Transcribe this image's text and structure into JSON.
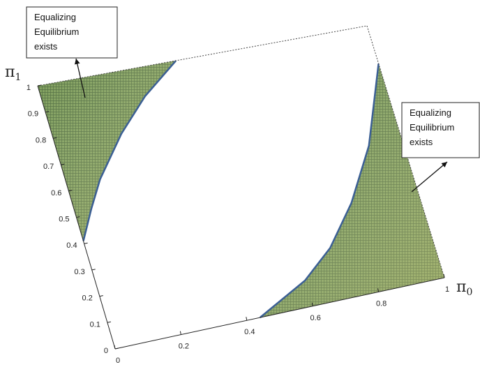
{
  "chart_data": {
    "type": "area",
    "title": "",
    "xlabel": "π0",
    "ylabel": "π1",
    "xlim": [
      0,
      1
    ],
    "ylim": [
      0,
      1
    ],
    "x_ticks": [
      0,
      0.2,
      0.4,
      0.6,
      0.8,
      1
    ],
    "y_ticks": [
      0,
      0.1,
      0.2,
      0.3,
      0.4,
      0.5,
      0.6,
      0.7,
      0.8,
      0.9,
      1
    ],
    "grid": false,
    "colors": {
      "surface": "#7f9e5c",
      "edge": "#3b5f94",
      "grid": "#4d6b3d"
    },
    "regions": [
      {
        "label": "Equalizing Equilibrium exists",
        "boundary": [
          [
            0,
            0.41
          ],
          [
            0.05,
            0.52
          ],
          [
            0.1,
            0.62
          ],
          [
            0.2,
            0.77
          ],
          [
            0.3,
            0.89
          ],
          [
            0.42,
            1.0
          ]
        ],
        "side": "upper-left"
      },
      {
        "label": "Equalizing Equilibrium exists",
        "boundary": [
          [
            0.44,
            0.0
          ],
          [
            0.6,
            0.1
          ],
          [
            0.7,
            0.2
          ],
          [
            0.8,
            0.35
          ],
          [
            0.9,
            0.55
          ],
          [
            1.0,
            0.85
          ]
        ],
        "side": "lower-right"
      }
    ],
    "annotations": [
      {
        "lines": [
          "Equalizing",
          "Equilibrium",
          "exists"
        ]
      },
      {
        "lines": [
          "Equalizing",
          "Equilibrium",
          "exists"
        ]
      }
    ]
  }
}
